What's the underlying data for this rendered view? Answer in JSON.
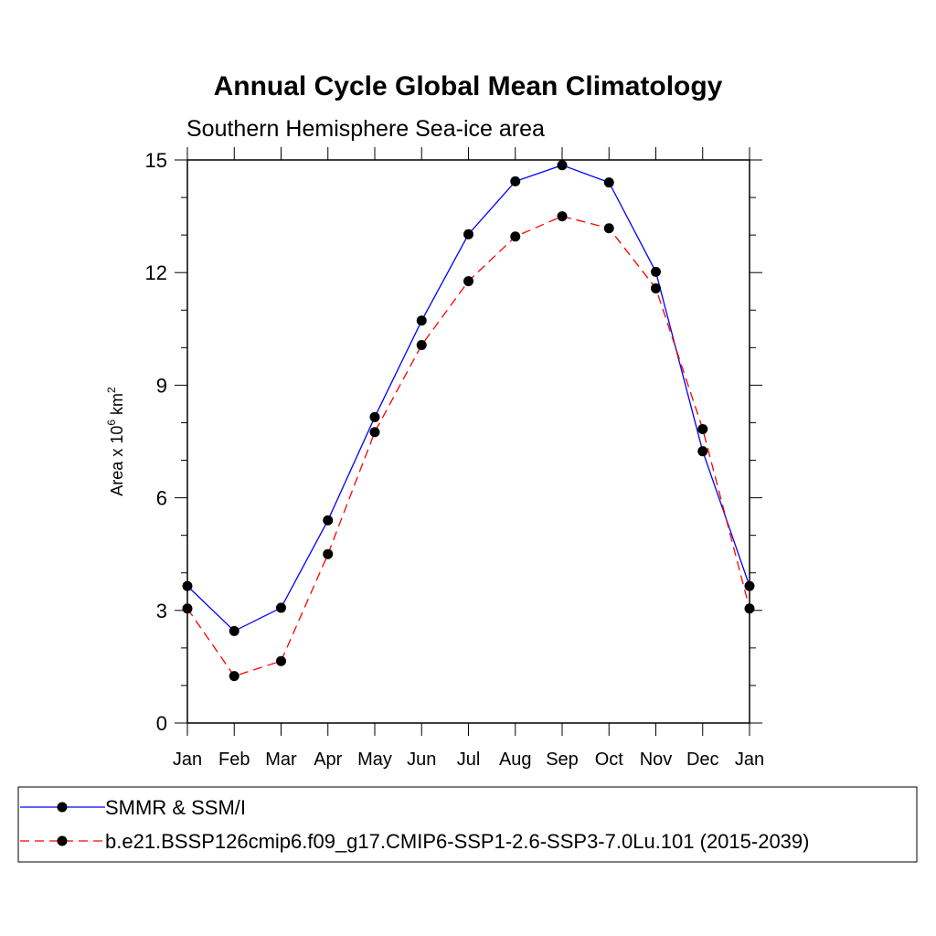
{
  "chart_data": {
    "type": "line",
    "title": "Annual Cycle Global Mean Climatology",
    "subtitle": "Southern Hemisphere Sea-ice area",
    "ylabel": {
      "base": "Area x 10",
      "exp1": "6",
      "mid": " km",
      "exp2": "2"
    },
    "xlabel": "",
    "categories": [
      "Jan",
      "Feb",
      "Mar",
      "Apr",
      "May",
      "Jun",
      "Jul",
      "Aug",
      "Sep",
      "Oct",
      "Nov",
      "Dec",
      "Jan"
    ],
    "ylim": [
      0,
      15
    ],
    "yticks": [
      0,
      3,
      6,
      9,
      12,
      15
    ],
    "grid": false,
    "legend_placement": "bottom",
    "series": [
      {
        "name": "SMMR & SSM/I",
        "color": "#0000ff",
        "dash": "solid",
        "values": [
          3.65,
          2.45,
          3.07,
          5.4,
          8.15,
          10.72,
          13.02,
          14.43,
          14.86,
          14.4,
          12.02,
          7.24,
          3.65
        ]
      },
      {
        "name": "b.e21.BSSP126cmip6.f09_g17.CMIP6-SSP1-2.6-SSP3-7.0Lu.101 (2015-2039)",
        "color": "#ff0000",
        "dash": "dashed",
        "values": [
          3.05,
          1.25,
          1.65,
          4.5,
          7.75,
          10.07,
          11.77,
          12.96,
          13.5,
          13.18,
          11.58,
          7.83,
          3.05
        ]
      }
    ]
  }
}
